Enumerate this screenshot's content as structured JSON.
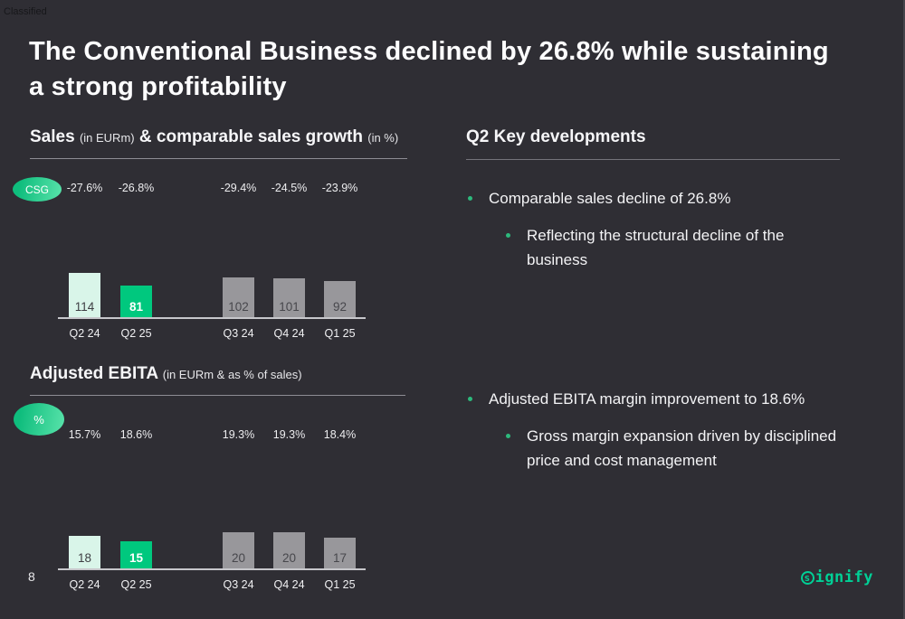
{
  "slide": {
    "classification": "Classified",
    "page_number": "8",
    "title": "The Conventional Business declined by 26.8% while sustaining a strong profitability"
  },
  "colors": {
    "background": "#2f2e34",
    "mint_bar": "#d9f5e9",
    "green_bar": "#00c87e",
    "gray_bar": "#98979b",
    "bullet_green": "#2db97c",
    "logo_green": "#00d096"
  },
  "sales_section": {
    "heading_main": "Sales",
    "heading_unit1": "(in EURm)",
    "heading_main2": "& comparable sales growth",
    "heading_unit2": "(in %)"
  },
  "ebita_section": {
    "heading_main": "Adjusted EBITA",
    "heading_unit": "(in EURm & as % of sales)"
  },
  "chart_data": [
    {
      "id": "sales",
      "type": "bar",
      "title": "Sales (in EURm) & comparable sales growth (in %)",
      "badge": "CSG",
      "categories": [
        "Q2 24",
        "Q2 25",
        "Q3 24",
        "Q4 24",
        "Q1 25"
      ],
      "values": [
        114,
        81,
        102,
        101,
        92
      ],
      "csg_labels": [
        "-27.6%",
        "-26.8%",
        "-29.4%",
        "-24.5%",
        "-23.9%"
      ],
      "bar_styles": [
        "mint",
        "green",
        "gray",
        "gray",
        "gray"
      ],
      "xlabel": "",
      "ylabel": "Sales (EURm)",
      "ylim": [
        0,
        120
      ],
      "grid": false,
      "legend": false
    },
    {
      "id": "ebita",
      "type": "bar",
      "title": "Adjusted EBITA (in EURm & as % of sales)",
      "badge": "%",
      "categories": [
        "Q2 24",
        "Q2 25",
        "Q3 24",
        "Q4 24",
        "Q1 25"
      ],
      "values": [
        18,
        15,
        20,
        20,
        17
      ],
      "margin_labels": [
        "15.7%",
        "18.6%",
        "19.3%",
        "19.3%",
        "18.4%"
      ],
      "bar_styles": [
        "mint",
        "green",
        "gray",
        "gray",
        "gray"
      ],
      "xlabel": "",
      "ylabel": "Adjusted EBITA (EURm)",
      "ylim": [
        0,
        22
      ],
      "grid": false,
      "legend": false
    }
  ],
  "key_developments": {
    "heading": "Q2 Key developments",
    "groups": [
      {
        "bullet": "Comparable sales decline of 26.8%",
        "sub_bullets": [
          "Reflecting the structural decline of the business"
        ]
      },
      {
        "bullet": "Adjusted EBITA margin improvement to 18.6%",
        "sub_bullets": [
          "Gross margin expansion driven by disciplined price and cost management"
        ]
      }
    ]
  },
  "logo": {
    "s": "s",
    "rest": "ignify"
  }
}
